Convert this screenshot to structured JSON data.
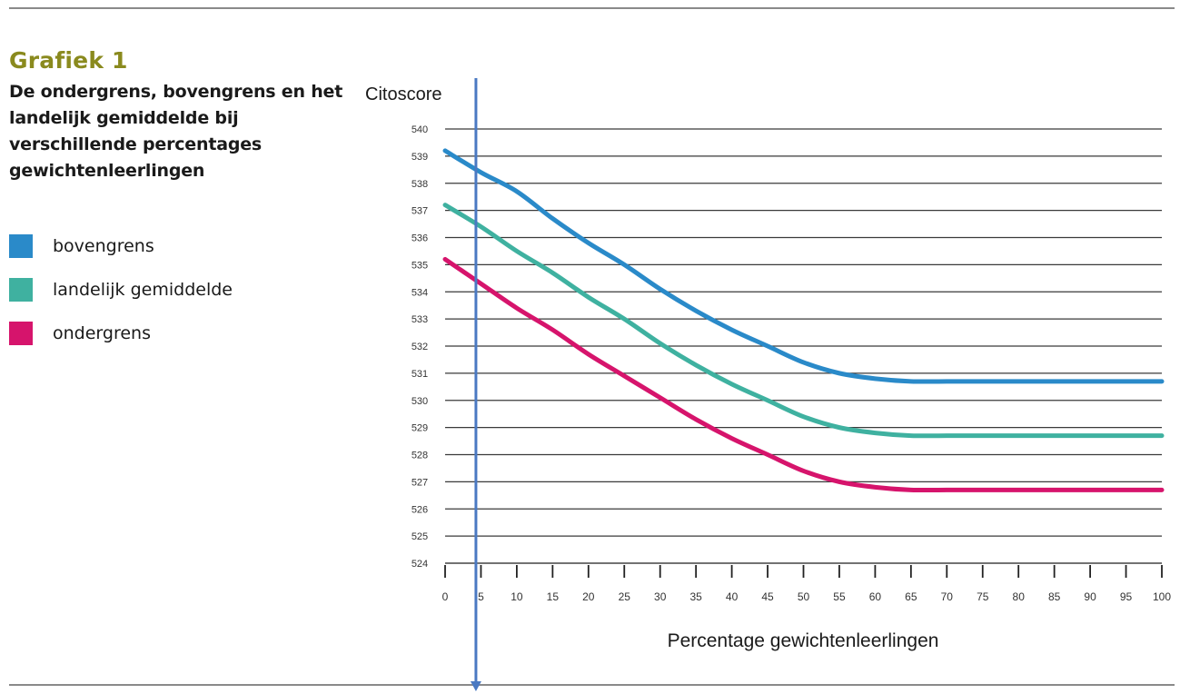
{
  "figure": {
    "kicker": "Grafiek 1",
    "heading": "De ondergrens, bovengrens en het landelijk gemiddelde bij verschillende percentages gewichtenleerlingen"
  },
  "chart_data": {
    "type": "line",
    "title": "",
    "xlabel": "Percentage gewichtenleerlingen",
    "ylabel": "Citoscore",
    "xlim": [
      0,
      100
    ],
    "ylim": [
      524,
      540
    ],
    "x_ticks": [
      0,
      5,
      10,
      15,
      20,
      25,
      30,
      35,
      40,
      45,
      50,
      55,
      60,
      65,
      70,
      75,
      80,
      85,
      90,
      95,
      100
    ],
    "y_ticks": [
      524,
      525,
      526,
      527,
      528,
      529,
      530,
      531,
      532,
      533,
      534,
      535,
      536,
      537,
      538,
      539,
      540
    ],
    "grid": "horizontal",
    "legend_position": "left",
    "x": [
      0,
      5,
      10,
      15,
      20,
      25,
      30,
      35,
      40,
      45,
      50,
      55,
      60,
      65,
      70,
      75,
      80,
      85,
      90,
      95,
      100
    ],
    "series": [
      {
        "name": "bovengrens",
        "color": "#2a8ac9",
        "values": [
          539.2,
          538.4,
          537.7,
          536.7,
          535.8,
          535.0,
          534.1,
          533.3,
          532.6,
          532.0,
          531.4,
          531.0,
          530.8,
          530.7,
          530.7,
          530.7,
          530.7,
          530.7,
          530.7,
          530.7,
          530.7
        ]
      },
      {
        "name": "landelijk gemiddelde",
        "color": "#3fb1a0",
        "values": [
          537.2,
          536.4,
          535.5,
          534.7,
          533.8,
          533.0,
          532.1,
          531.3,
          530.6,
          530.0,
          529.4,
          529.0,
          528.8,
          528.7,
          528.7,
          528.7,
          528.7,
          528.7,
          528.7,
          528.7,
          528.7
        ]
      },
      {
        "name": "ondergrens",
        "color": "#d6146c",
        "values": [
          535.2,
          534.3,
          533.4,
          532.6,
          531.7,
          530.9,
          530.1,
          529.3,
          528.6,
          528.0,
          527.4,
          527.0,
          526.8,
          526.7,
          526.7,
          526.7,
          526.7,
          526.7,
          526.7,
          526.7,
          526.7
        ]
      }
    ],
    "annotations": [
      {
        "type": "vertical_marker_arrow",
        "x": 4.3,
        "color": "#4a79c2"
      }
    ]
  }
}
